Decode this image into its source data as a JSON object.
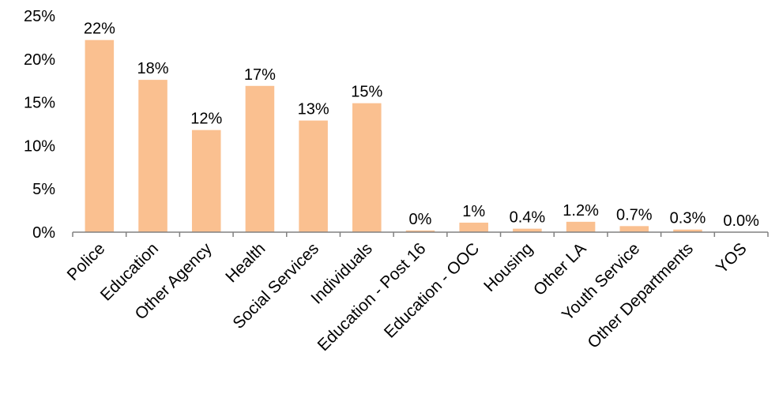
{
  "chart_data": {
    "type": "bar",
    "title": "",
    "xlabel": "",
    "ylabel": "",
    "ylim": [
      0,
      25
    ],
    "ytick_values": [
      0,
      5,
      10,
      15,
      20,
      25
    ],
    "ytick_labels": [
      "0%",
      "5%",
      "10%",
      "15%",
      "20%",
      "25%"
    ],
    "grid": false,
    "legend": "none",
    "bar_color": "#FAC090",
    "categories": [
      "Police",
      "Education",
      "Other Agency",
      "Health",
      "Social Services",
      "Individuals",
      "Education - Post 16",
      "Education - OOC",
      "Housing",
      "Other LA",
      "Youth Service",
      "Other Departments",
      "YOS"
    ],
    "values": [
      22.2,
      17.6,
      11.8,
      16.9,
      12.9,
      14.9,
      0.2,
      1.1,
      0.4,
      1.2,
      0.7,
      0.3,
      0.0
    ],
    "data_labels": [
      "22%",
      "18%",
      "12%",
      "17%",
      "13%",
      "15%",
      "0%",
      "1%",
      "0.4%",
      "1.2%",
      "0.7%",
      "0.3%",
      "0.0%"
    ]
  }
}
